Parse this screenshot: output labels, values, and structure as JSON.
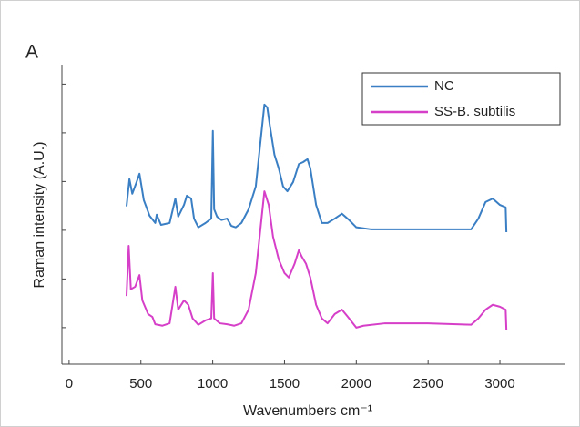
{
  "chart_data": {
    "type": "line",
    "panel_label": "A",
    "x_label": "Wavenumbers cm⁻¹",
    "y_label": "Raman intensity (A.U.)",
    "xlim": [
      -50,
      3450
    ],
    "ylim": [
      0.25,
      6.4
    ],
    "xticks": [
      0,
      500,
      1000,
      1500,
      2000,
      2500,
      3000
    ],
    "yticks": [
      1,
      2,
      3,
      4,
      5,
      6
    ],
    "legend": "upper right",
    "series": [
      {
        "name": "NC",
        "color": "#3a7fc4",
        "x": [
          400,
          420,
          440,
          470,
          490,
          520,
          560,
          600,
          610,
          640,
          700,
          740,
          760,
          800,
          820,
          850,
          870,
          900,
          950,
          990,
          1001,
          1010,
          1030,
          1060,
          1100,
          1130,
          1160,
          1200,
          1250,
          1300,
          1330,
          1360,
          1380,
          1400,
          1430,
          1460,
          1490,
          1520,
          1560,
          1600,
          1630,
          1660,
          1680,
          1720,
          1760,
          1800,
          1850,
          1900,
          1950,
          2000,
          2100,
          2500,
          2800,
          2850,
          2900,
          2950,
          3000,
          3040,
          3045
        ],
        "values": [
          3.49,
          4.05,
          3.75,
          3.99,
          4.16,
          3.62,
          3.3,
          3.15,
          3.32,
          3.11,
          3.15,
          3.65,
          3.28,
          3.52,
          3.71,
          3.65,
          3.24,
          3.06,
          3.15,
          3.24,
          5.04,
          3.43,
          3.28,
          3.21,
          3.24,
          3.09,
          3.06,
          3.15,
          3.43,
          3.9,
          4.74,
          5.58,
          5.52,
          5.11,
          4.55,
          4.27,
          3.9,
          3.8,
          3.99,
          4.36,
          4.4,
          4.46,
          4.27,
          3.52,
          3.15,
          3.15,
          3.24,
          3.34,
          3.21,
          3.06,
          3.02,
          3.02,
          3.02,
          3.24,
          3.58,
          3.65,
          3.52,
          3.47,
          2.96
        ]
      },
      {
        "name": "SS-B. subtilis",
        "color": "#d63fc8",
        "x": [
          400,
          415,
          430,
          460,
          490,
          510,
          550,
          580,
          600,
          650,
          700,
          740,
          760,
          800,
          830,
          860,
          900,
          950,
          990,
          1001,
          1010,
          1050,
          1100,
          1150,
          1200,
          1250,
          1300,
          1330,
          1360,
          1390,
          1420,
          1460,
          1500,
          1530,
          1570,
          1600,
          1620,
          1650,
          1680,
          1720,
          1760,
          1800,
          1850,
          1900,
          1950,
          2000,
          2050,
          2200,
          2500,
          2800,
          2850,
          2900,
          2950,
          3000,
          3040,
          3045
        ],
        "values": [
          1.65,
          2.68,
          1.79,
          1.84,
          2.08,
          1.56,
          1.28,
          1.22,
          1.07,
          1.04,
          1.09,
          1.84,
          1.37,
          1.56,
          1.47,
          1.19,
          1.06,
          1.15,
          1.19,
          2.12,
          1.19,
          1.09,
          1.07,
          1.04,
          1.09,
          1.37,
          2.12,
          2.96,
          3.8,
          3.52,
          2.87,
          2.4,
          2.12,
          2.03,
          2.31,
          2.59,
          2.46,
          2.31,
          2.03,
          1.47,
          1.19,
          1.09,
          1.28,
          1.37,
          1.19,
          1.0,
          1.04,
          1.09,
          1.09,
          1.06,
          1.19,
          1.37,
          1.47,
          1.43,
          1.37,
          0.96
        ]
      }
    ]
  }
}
